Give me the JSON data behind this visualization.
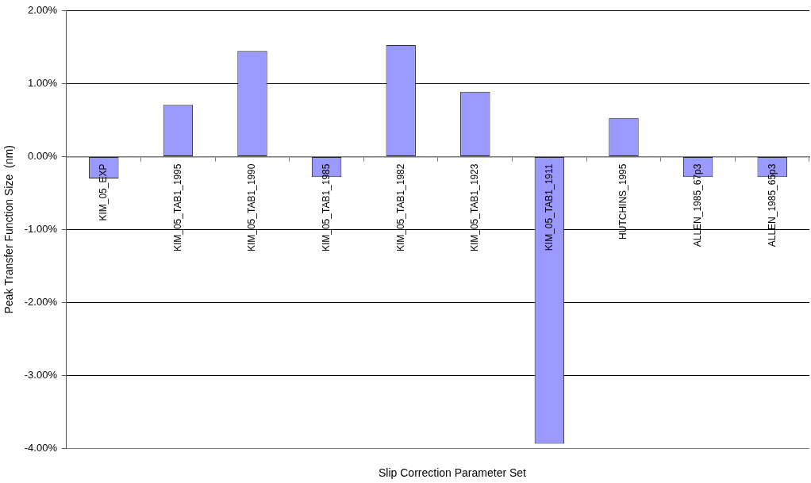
{
  "chart_data": {
    "type": "bar",
    "xlabel": "Slip Correction Parameter Set",
    "ylabel": "Peak Transfer Function Size  (nm)",
    "categories": [
      "KIM_05_EXP",
      "KIM_05_TAB1_1995",
      "KIM_05_TAB1_1990",
      "KIM_05_TAB1_1985",
      "KIM_05_TAB1_1982",
      "KIM_05_TAB1_1923",
      "KIM_05_TAB1_1911",
      "HUTCHINS_1995",
      "ALLEN_1985_67p3",
      "ALLEN_1985_65p3"
    ],
    "values": [
      -0.3,
      0.71,
      1.45,
      -0.28,
      1.53,
      0.89,
      -3.94,
      0.53,
      -0.28,
      -0.28
    ],
    "color": "#9999ff",
    "ylim": [
      -4,
      2
    ],
    "yticks": [
      {
        "value": -4,
        "label": "-4.00%"
      },
      {
        "value": -3,
        "label": "-3.00%"
      },
      {
        "value": -2,
        "label": "-2.00%"
      },
      {
        "value": -1,
        "label": "-1.00%"
      },
      {
        "value": 0,
        "label": "0.00%"
      },
      {
        "value": 1,
        "label": "1.00%"
      },
      {
        "value": 2,
        "label": "2.00%"
      }
    ],
    "grid": "y",
    "legend": false
  }
}
